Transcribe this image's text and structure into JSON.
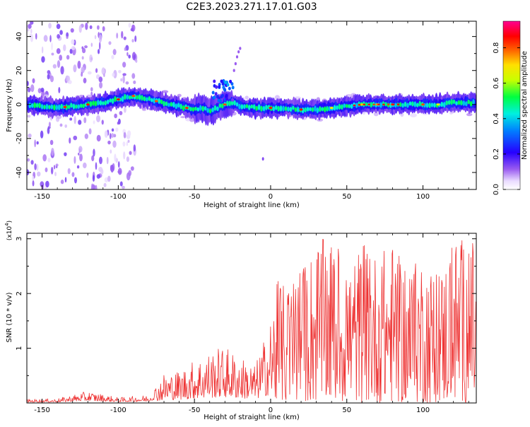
{
  "title": "C2E3.2023.271.17.01.G03",
  "chart_data": [
    {
      "type": "heatmap",
      "xlabel": "Height of straight line (km)",
      "ylabel": "Frequency (Hz)",
      "xlim": [
        -160,
        135
      ],
      "ylim": [
        -50,
        49
      ],
      "xticks": [
        -150,
        -100,
        -50,
        0,
        50,
        100
      ],
      "yticks": [
        -40,
        -20,
        0,
        20,
        40
      ],
      "grid": false,
      "colorbar": {
        "label": "Normalized spectral amplitude",
        "range": [
          0,
          0.95
        ],
        "ticks": [
          "0.0",
          "0.2",
          "0.4",
          "0.6",
          "0.8"
        ],
        "tick_values": [
          0,
          0.2,
          0.4,
          0.6,
          0.8
        ],
        "colormap": "rainbow (white-violet-blue-cyan-green-yellow-orange-red-magenta)"
      },
      "ridge_frequency_hz": [
        [
          -160,
          0
        ],
        [
          -150,
          -1
        ],
        [
          -140,
          -2
        ],
        [
          -130,
          -1
        ],
        [
          -120,
          0
        ],
        [
          -110,
          1
        ],
        [
          -100,
          3
        ],
        [
          -90,
          5
        ],
        [
          -80,
          3
        ],
        [
          -70,
          1
        ],
        [
          -60,
          -1
        ],
        [
          -50,
          -3
        ],
        [
          -45,
          -2
        ],
        [
          -40,
          -4
        ],
        [
          -35,
          -2
        ],
        [
          -30,
          0
        ],
        [
          -25,
          1
        ],
        [
          -20,
          -1
        ],
        [
          -10,
          -2
        ],
        [
          0,
          -2
        ],
        [
          10,
          -2
        ],
        [
          20,
          -3
        ],
        [
          30,
          -3
        ],
        [
          40,
          -2
        ],
        [
          50,
          -1
        ],
        [
          60,
          0
        ],
        [
          70,
          0
        ],
        [
          80,
          0
        ],
        [
          90,
          0
        ],
        [
          100,
          0
        ],
        [
          110,
          0
        ],
        [
          120,
          1
        ],
        [
          135,
          1
        ]
      ],
      "high_amplitude_x_km": [
        -135,
        -120,
        -100,
        -90,
        -75,
        -55,
        -30,
        0,
        20,
        40,
        60,
        70,
        80,
        100,
        110
      ]
    },
    {
      "type": "line",
      "xlabel": "Height of straight line (km)",
      "ylabel": "SNR (10 * v/v)",
      "y_multiplier": "(x10^4)",
      "xlim": [
        -160,
        135
      ],
      "ylim": [
        0,
        3.1
      ],
      "xticks": [
        -150,
        -100,
        -50,
        0,
        50,
        100
      ],
      "yticks": [
        1,
        2,
        3
      ],
      "grid": false,
      "series": [
        {
          "color": "#ee3333",
          "envelope_x": [
            -160,
            -140,
            -120,
            -100,
            -80,
            -70,
            -60,
            -50,
            -40,
            -30,
            -20,
            -10,
            0,
            5,
            10,
            20,
            30,
            40,
            50,
            60,
            70,
            80,
            90,
            100,
            110,
            120,
            135
          ],
          "envelope_peak": [
            0.07,
            0.08,
            0.22,
            0.1,
            0.15,
            0.55,
            0.6,
            0.8,
            0.95,
            1.05,
            0.85,
            0.7,
            1.55,
            2.3,
            2.1,
            2.45,
            3.0,
            3.0,
            2.6,
            2.9,
            2.75,
            2.95,
            2.35,
            2.8,
            2.3,
            3.1,
            2.95
          ]
        }
      ]
    }
  ]
}
